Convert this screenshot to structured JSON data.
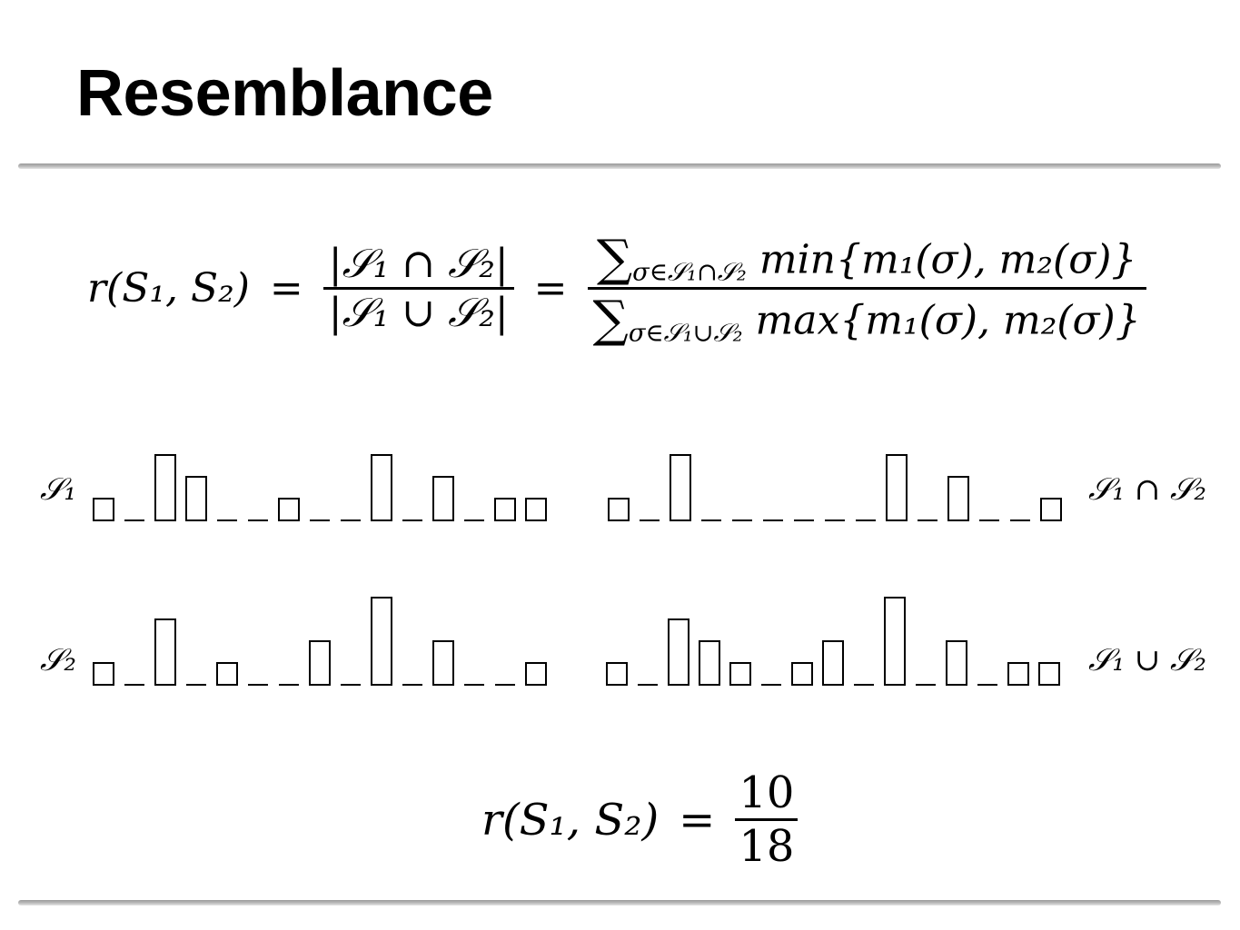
{
  "slide": {
    "title": "Resemblance"
  },
  "formula": {
    "lhs": "r(S₁, S₂)",
    "equals": "=",
    "set_ratio_num": "|𝒮₁ ∩ 𝒮₂|",
    "set_ratio_den": "|𝒮₁ ∪ 𝒮₂|",
    "sum_num_sub": "σ∈𝒮₁∩𝒮₂",
    "sum_num_body": "min{m₁(σ), m₂(σ)}",
    "sum_den_sub": "σ∈𝒮₁∪𝒮₂",
    "sum_den_body": "max{m₁(σ), m₂(σ)}"
  },
  "labels": {
    "s1": "𝒮₁",
    "s2": "𝒮₂",
    "intersection": "𝒮₁ ∩ 𝒮₂",
    "union": "𝒮₁ ∪ 𝒮₂"
  },
  "histograms": {
    "s1": [
      1,
      0,
      3,
      2,
      0,
      0,
      1,
      0,
      0,
      3,
      0,
      2,
      0,
      1,
      1
    ],
    "s2": [
      1,
      0,
      3,
      0,
      1,
      0,
      0,
      2,
      0,
      4,
      0,
      2,
      0,
      0,
      1
    ],
    "intersection": [
      1,
      0,
      3,
      0,
      0,
      0,
      0,
      0,
      0,
      3,
      0,
      2,
      0,
      0,
      1
    ],
    "union": [
      1,
      0,
      3,
      2,
      1,
      0,
      1,
      2,
      0,
      4,
      0,
      2,
      0,
      1,
      1
    ]
  },
  "result": {
    "lhs": "r(S₁, S₂)",
    "equals": "=",
    "numerator": "10",
    "denominator": "18"
  }
}
